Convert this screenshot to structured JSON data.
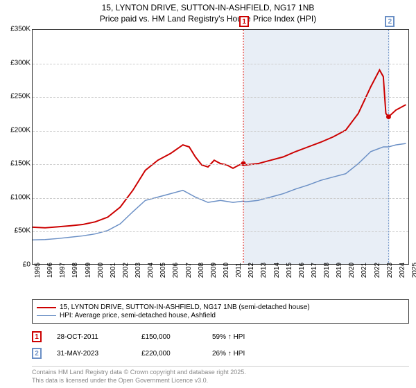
{
  "title_line1": "15, LYNTON DRIVE, SUTTON-IN-ASHFIELD, NG17 1NB",
  "title_line2": "Price paid vs. HM Land Registry's House Price Index (HPI)",
  "chart": {
    "type": "line",
    "x_start_year": 1995,
    "x_end_year": 2025,
    "x_tick_step": 1,
    "ylim": [
      0,
      350000
    ],
    "ytick_step": 50000,
    "y_ticks": [
      "£0",
      "£50K",
      "£100K",
      "£150K",
      "£200K",
      "£250K",
      "£300K",
      "£350K"
    ],
    "x_ticks": [
      "1995",
      "1996",
      "1997",
      "1998",
      "1999",
      "2000",
      "2001",
      "2002",
      "2003",
      "2004",
      "2005",
      "2006",
      "2007",
      "2008",
      "2009",
      "2010",
      "2011",
      "2012",
      "2013",
      "2014",
      "2015",
      "2016",
      "2017",
      "2018",
      "2019",
      "2020",
      "2021",
      "2022",
      "2023",
      "2024",
      "2025"
    ],
    "background_color": "#ffffff",
    "grid_color": "#cccccc",
    "border_color": "#333333",
    "label_fontsize": 10,
    "title_fontsize": 12,
    "shade_regions": [
      {
        "from": 2011.83,
        "to": 2023.42,
        "color": "#e8eef6"
      }
    ],
    "series": [
      {
        "name": "price_paid",
        "color": "#cc0000",
        "width": 2,
        "points": [
          [
            1995,
            55000
          ],
          [
            1996,
            54000
          ],
          [
            1997,
            55500
          ],
          [
            1998,
            57000
          ],
          [
            1999,
            59000
          ],
          [
            2000,
            63000
          ],
          [
            2001,
            70000
          ],
          [
            2002,
            85000
          ],
          [
            2003,
            110000
          ],
          [
            2004,
            140000
          ],
          [
            2005,
            155000
          ],
          [
            2006,
            165000
          ],
          [
            2007,
            178000
          ],
          [
            2007.5,
            175000
          ],
          [
            2008,
            160000
          ],
          [
            2008.5,
            148000
          ],
          [
            2009,
            145000
          ],
          [
            2009.5,
            155000
          ],
          [
            2010,
            150000
          ],
          [
            2010.5,
            148000
          ],
          [
            2011,
            143000
          ],
          [
            2011.5,
            148000
          ],
          [
            2011.83,
            150000
          ],
          [
            2012,
            148000
          ],
          [
            2013,
            150000
          ],
          [
            2014,
            155000
          ],
          [
            2015,
            160000
          ],
          [
            2016,
            168000
          ],
          [
            2017,
            175000
          ],
          [
            2018,
            182000
          ],
          [
            2019,
            190000
          ],
          [
            2020,
            200000
          ],
          [
            2021,
            225000
          ],
          [
            2022,
            265000
          ],
          [
            2022.7,
            290000
          ],
          [
            2023,
            280000
          ],
          [
            2023.2,
            225000
          ],
          [
            2023.42,
            220000
          ],
          [
            2024,
            230000
          ],
          [
            2024.8,
            238000
          ]
        ]
      },
      {
        "name": "hpi",
        "color": "#6a8fc5",
        "width": 1.5,
        "points": [
          [
            1995,
            36000
          ],
          [
            1996,
            36500
          ],
          [
            1997,
            38000
          ],
          [
            1998,
            40000
          ],
          [
            1999,
            42000
          ],
          [
            2000,
            45000
          ],
          [
            2001,
            50000
          ],
          [
            2002,
            60000
          ],
          [
            2003,
            78000
          ],
          [
            2004,
            95000
          ],
          [
            2005,
            100000
          ],
          [
            2006,
            105000
          ],
          [
            2007,
            110000
          ],
          [
            2008,
            100000
          ],
          [
            2009,
            92000
          ],
          [
            2010,
            95000
          ],
          [
            2011,
            92000
          ],
          [
            2011.83,
            94000
          ],
          [
            2012,
            93000
          ],
          [
            2013,
            95000
          ],
          [
            2014,
            100000
          ],
          [
            2015,
            105000
          ],
          [
            2016,
            112000
          ],
          [
            2017,
            118000
          ],
          [
            2018,
            125000
          ],
          [
            2019,
            130000
          ],
          [
            2020,
            135000
          ],
          [
            2021,
            150000
          ],
          [
            2022,
            168000
          ],
          [
            2023,
            175000
          ],
          [
            2023.42,
            175000
          ],
          [
            2024,
            178000
          ],
          [
            2024.8,
            180000
          ]
        ]
      }
    ],
    "markers": [
      {
        "id": "1",
        "year": 2011.83,
        "price": 150000,
        "dot_color": "#cc0000",
        "box_color": "#cc0000"
      },
      {
        "id": "2",
        "year": 2023.42,
        "price": 220000,
        "dot_color": "#cc0000",
        "box_color": "#6a8fc5"
      }
    ]
  },
  "legend": {
    "items": [
      {
        "color": "#cc0000",
        "width": 2,
        "label": "15, LYNTON DRIVE, SUTTON-IN-ASHFIELD, NG17 1NB (semi-detached house)"
      },
      {
        "color": "#6a8fc5",
        "width": 1.5,
        "label": "HPI: Average price, semi-detached house, Ashfield"
      }
    ]
  },
  "sales": [
    {
      "id": "1",
      "box_color": "#cc0000",
      "date": "28-OCT-2011",
      "price": "£150,000",
      "hpi": "59% ↑ HPI"
    },
    {
      "id": "2",
      "box_color": "#6a8fc5",
      "date": "31-MAY-2023",
      "price": "£220,000",
      "hpi": "26% ↑ HPI"
    }
  ],
  "footnote_line1": "Contains HM Land Registry data © Crown copyright and database right 2025.",
  "footnote_line2": "This data is licensed under the Open Government Licence v3.0."
}
